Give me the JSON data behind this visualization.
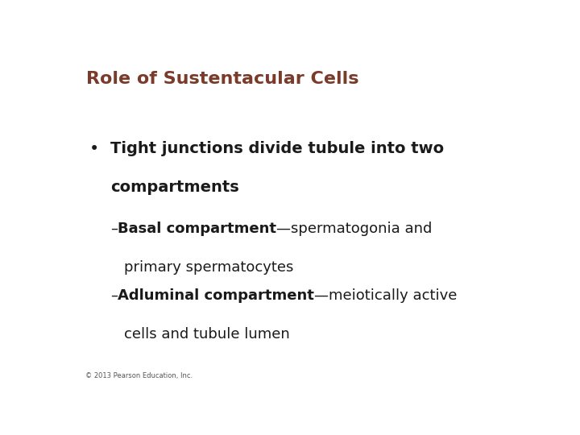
{
  "title": "Role of Sustentacular Cells",
  "title_color": "#7B3B2A",
  "title_fontsize": 16,
  "background_color": "#FFFFFF",
  "bullet_fontsize": 14,
  "bullet_color": "#1A1A1A",
  "sub_fontsize": 13,
  "sub_color": "#1A1A1A",
  "sub1_bold": "Basal compartment",
  "sub1_normal": "—spermatogonia and",
  "sub1_cont": "primary spermatocytes",
  "sub2_bold": "Adluminal compartment",
  "sub2_normal": "—meiotically active",
  "sub2_cont": "cells and tubule lumen",
  "copyright": "© 2013 Pearson Education, Inc.",
  "copyright_fontsize": 6,
  "copyright_color": "#555555",
  "bullet_text_line1": "Tight junctions divide tubule into two",
  "bullet_text_line2": "compartments"
}
